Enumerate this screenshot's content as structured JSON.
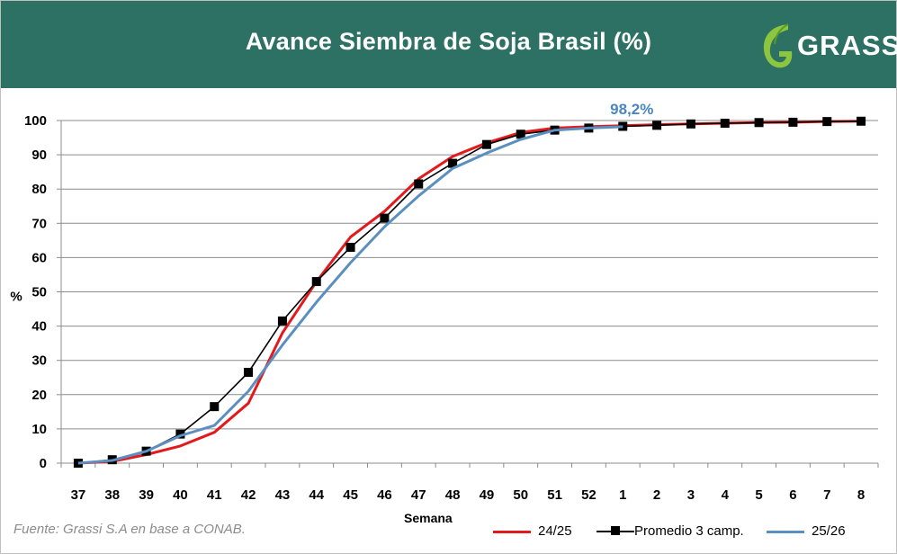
{
  "header": {
    "title": "Avance Siembra de Soja Brasil (%)",
    "logo_text": "GRASSI",
    "logo_icon": "leaf-g-icon"
  },
  "colors": {
    "header_bg": "#2c7163",
    "series_2425": "#e31a1c",
    "series_avg": "#000000",
    "series_2526": "#5b8fbf",
    "callout": "#4a86c0"
  },
  "source": "Fuente: Grassi S.A en base a CONAB.",
  "chart_data": {
    "type": "line",
    "title": "Avance Siembra de Soja Brasil (%)",
    "xlabel": "Semana",
    "ylabel": "%",
    "ylim": [
      0,
      100
    ],
    "yticks": [
      0,
      10,
      20,
      30,
      40,
      50,
      60,
      70,
      80,
      90,
      100
    ],
    "grid": true,
    "legend_position": "bottom-right",
    "categories": [
      "37",
      "38",
      "39",
      "40",
      "41",
      "42",
      "43",
      "44",
      "45",
      "46",
      "47",
      "48",
      "49",
      "50",
      "51",
      "52",
      "1",
      "2",
      "3",
      "4",
      "5",
      "6",
      "7",
      "8"
    ],
    "series": [
      {
        "name": "24/25",
        "color": "#e31a1c",
        "marker": "none",
        "values": [
          0,
          0.5,
          2.5,
          5,
          9,
          17.5,
          38,
          53,
          66,
          73.5,
          83,
          89.5,
          93.5,
          96.5,
          97.8,
          98.2,
          98.5,
          98.8,
          99.0,
          99.2,
          99.4,
          99.5,
          99.7,
          99.8
        ]
      },
      {
        "name": "Promedio 3 camp.",
        "color": "#000000",
        "marker": "square",
        "values": [
          0,
          1,
          3.5,
          8.5,
          16.5,
          26.5,
          41.5,
          53,
          63,
          71.5,
          81.5,
          87.5,
          93,
          96,
          97.2,
          97.8,
          98.3,
          98.6,
          99.0,
          99.2,
          99.4,
          99.5,
          99.7,
          99.8
        ]
      },
      {
        "name": "25/26",
        "color": "#5b8fbf",
        "marker": "none",
        "values": [
          0,
          0.8,
          3.5,
          8,
          11,
          21,
          34.5,
          47,
          58.5,
          69,
          78,
          86,
          90.5,
          94.5,
          97.2,
          97.8,
          98.2,
          null,
          null,
          null,
          null,
          null,
          null,
          null
        ]
      }
    ],
    "annotation": {
      "text": "98,2%",
      "category": "1",
      "series": "25/26"
    }
  },
  "legend": [
    {
      "label": "24/25"
    },
    {
      "label": "Promedio 3 camp."
    },
    {
      "label": "25/26"
    }
  ]
}
